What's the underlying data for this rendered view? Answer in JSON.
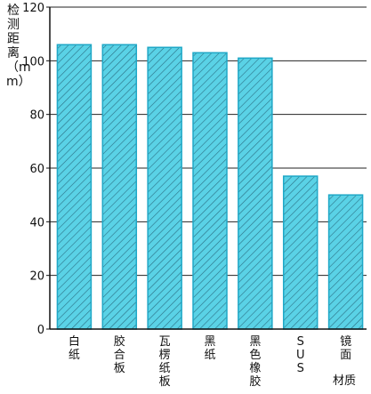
{
  "chart_data": {
    "type": "bar",
    "title": "",
    "ylabel": "检测距离（mm）",
    "xlabel": "材质",
    "ylim": [
      0,
      120
    ],
    "yticks": [
      0,
      20,
      40,
      60,
      80,
      100,
      120
    ],
    "grid": true,
    "categories": [
      "白纸",
      "胶合板",
      "瓦楞纸板",
      "黑纸",
      "黑色橡胶",
      "SUS",
      "镜面"
    ],
    "values": [
      106,
      106,
      105,
      103,
      101,
      57,
      50
    ],
    "colors": {
      "bar_fill": "#5ad2e6",
      "bar_stroke": "#1fa8c7",
      "hatch": "#2a6f84",
      "grid": "#222222",
      "axis": "#111111"
    }
  }
}
